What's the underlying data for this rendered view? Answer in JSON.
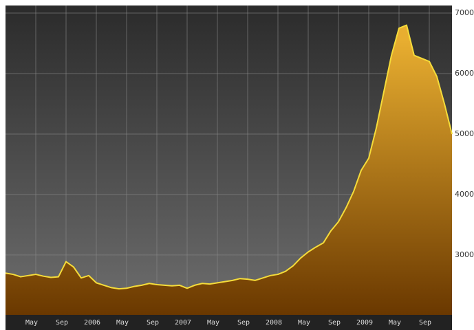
{
  "chart_data": {
    "type": "area",
    "x": [
      "2005-01",
      "2005-02",
      "2005-03",
      "2005-04",
      "2005-05",
      "2005-06",
      "2005-07",
      "2005-08",
      "2005-09",
      "2005-10",
      "2005-11",
      "2005-12",
      "2006-01",
      "2006-02",
      "2006-03",
      "2006-04",
      "2006-05",
      "2006-06",
      "2006-07",
      "2006-08",
      "2006-09",
      "2006-10",
      "2006-11",
      "2006-12",
      "2007-01",
      "2007-02",
      "2007-03",
      "2007-04",
      "2007-05",
      "2007-06",
      "2007-07",
      "2007-08",
      "2007-09",
      "2007-10",
      "2007-11",
      "2007-12",
      "2008-01",
      "2008-02",
      "2008-03",
      "2008-04",
      "2008-05",
      "2008-06",
      "2008-07",
      "2008-08",
      "2008-09",
      "2008-10",
      "2008-11",
      "2008-12",
      "2009-01",
      "2009-02",
      "2009-03",
      "2009-04",
      "2009-05",
      "2009-06",
      "2009-07",
      "2009-08",
      "2009-09",
      "2009-10",
      "2009-11",
      "2009-12"
    ],
    "series": [
      {
        "color": "#f5dc3a",
        "values": [
          2700,
          2680,
          2640,
          2660,
          2680,
          2650,
          2630,
          2640,
          2890,
          2800,
          2620,
          2660,
          2540,
          2500,
          2460,
          2440,
          2450,
          2480,
          2500,
          2530,
          2510,
          2500,
          2490,
          2500,
          2450,
          2500,
          2530,
          2520,
          2540,
          2560,
          2580,
          2610,
          2600,
          2580,
          2620,
          2660,
          2680,
          2730,
          2820,
          2950,
          3050,
          3130,
          3200,
          3400,
          3550,
          3780,
          4050,
          4400,
          4600,
          5100,
          5700,
          6300,
          6750,
          6800,
          6300,
          6250,
          6200,
          5950,
          5500,
          5000
        ]
      }
    ],
    "ylim": [
      2010,
      7125
    ],
    "yticks": [
      3000,
      4000,
      5000,
      6000,
      7000
    ],
    "xticks": [
      {
        "value": "2005-05",
        "label": "May"
      },
      {
        "value": "2005-09",
        "label": "Sep"
      },
      {
        "value": "2006-01",
        "label": "2006"
      },
      {
        "value": "2006-05",
        "label": "May"
      },
      {
        "value": "2006-09",
        "label": "Sep"
      },
      {
        "value": "2007-01",
        "label": "2007"
      },
      {
        "value": "2007-05",
        "label": "May"
      },
      {
        "value": "2007-09",
        "label": "Sep"
      },
      {
        "value": "2008-01",
        "label": "2008"
      },
      {
        "value": "2008-05",
        "label": "May"
      },
      {
        "value": "2008-09",
        "label": "Sep"
      },
      {
        "value": "2009-01",
        "label": "2009"
      },
      {
        "value": "2009-05",
        "label": "May"
      },
      {
        "value": "2009-09",
        "label": "Sep"
      }
    ],
    "grid": true
  }
}
